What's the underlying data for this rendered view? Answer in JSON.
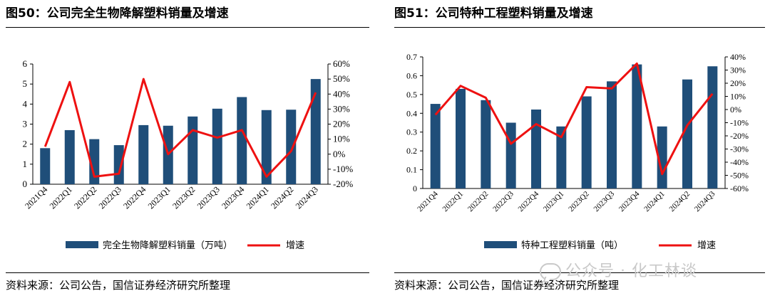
{
  "charts": [
    {
      "fig_title": "图50：公司完全生物降解塑料销量及增速",
      "source": "资料来源：公司公告，国信证券经济研究所整理",
      "chart_data": {
        "type": "bar",
        "categories": [
          "2021Q4",
          "2022Q1",
          "2022Q2",
          "2022Q3",
          "2022Q4",
          "2023Q1",
          "2023Q2",
          "2023Q3",
          "2023Q4",
          "2024Q1",
          "2024Q2",
          "2024Q3"
        ],
        "series": [
          {
            "name": "完全生物降解塑料销量（万吨）",
            "type": "bar",
            "axis": "left",
            "color": "#1f4e79",
            "values": [
              1.8,
              2.7,
              2.25,
              1.95,
              2.95,
              2.92,
              3.38,
              3.77,
              4.35,
              3.7,
              3.72,
              5.25
            ]
          },
          {
            "name": "增速",
            "type": "line",
            "axis": "right",
            "color": "#ee1111",
            "values": [
              5,
              48,
              -15,
              -13,
              50,
              0,
              16,
              11,
              16,
              -15,
              2,
              41
            ]
          }
        ],
        "yleft": {
          "min": 0,
          "max": 6,
          "step": 1,
          "ticks": [
            "0",
            "1",
            "2",
            "3",
            "4",
            "5",
            "6"
          ]
        },
        "yright": {
          "min": -20,
          "max": 60,
          "step": 10,
          "ticks": [
            "-20%",
            "-10%",
            "0%",
            "10%",
            "20%",
            "30%",
            "40%",
            "50%",
            "60%"
          ]
        },
        "legend": "bottom",
        "grid": false
      }
    },
    {
      "fig_title": "图51：公司特种工程塑料销量及增速",
      "source": "资料来源：公司公告，国信证券经济研究所整理",
      "chart_data": {
        "type": "bar",
        "categories": [
          "2021Q4",
          "2022Q1",
          "2022Q2",
          "2022Q3",
          "2022Q4",
          "2023Q1",
          "2023Q2",
          "2023Q3",
          "2023Q4",
          "2024Q1",
          "2024Q2",
          "2024Q3"
        ],
        "series": [
          {
            "name": "特种工程塑料销量（吨）",
            "type": "bar",
            "axis": "left",
            "color": "#1f4e79",
            "values": [
              0.45,
              0.53,
              0.47,
              0.35,
              0.42,
              0.33,
              0.49,
              0.57,
              0.66,
              0.33,
              0.58,
              0.65
            ]
          },
          {
            "name": "增速",
            "type": "line",
            "axis": "right",
            "color": "#ee1111",
            "values": [
              -4,
              18,
              9,
              -26,
              -11,
              -21,
              17,
              16,
              35,
              -49,
              -12,
              12
            ]
          }
        ],
        "yleft": {
          "min": 0,
          "max": 0.7,
          "step": 0.1,
          "ticks": [
            "0",
            "0.1",
            "0.2",
            "0.3",
            "0.4",
            "0.5",
            "0.6",
            "0.7"
          ]
        },
        "yright": {
          "min": -60,
          "max": 40,
          "step": 10,
          "ticks": [
            "-60%",
            "-50%",
            "-40%",
            "-30%",
            "-20%",
            "-10%",
            "0%",
            "10%",
            "20%",
            "30%",
            "40%"
          ]
        },
        "legend": "bottom",
        "grid": false
      }
    }
  ],
  "watermark": {
    "text": "公众号 · 化工林谈"
  }
}
